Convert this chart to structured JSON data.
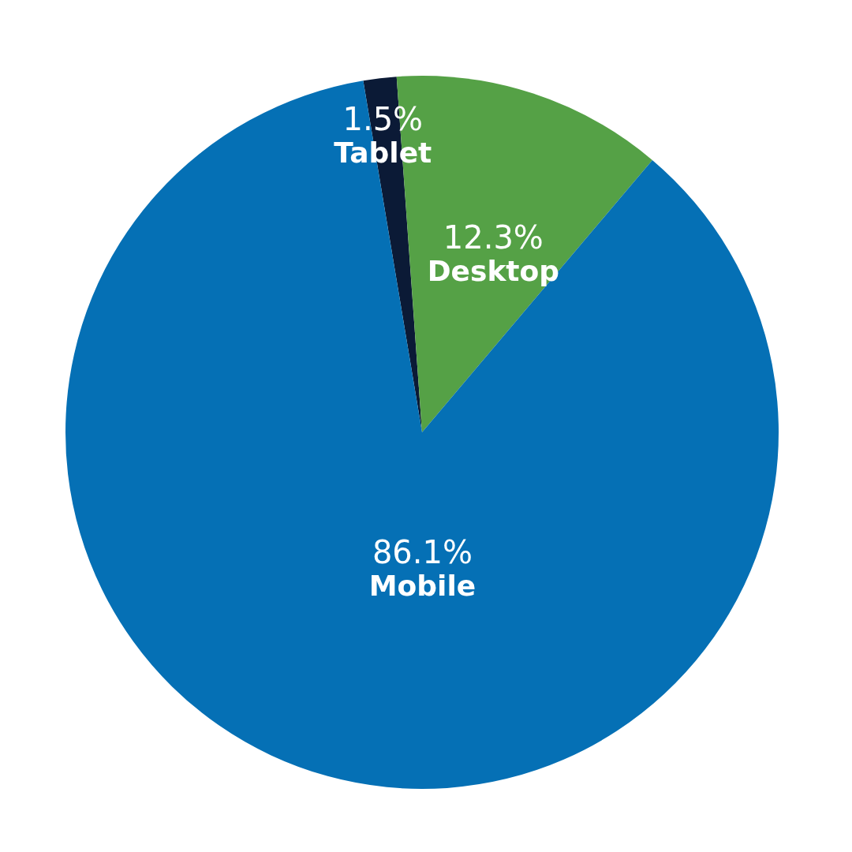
{
  "chart_data": {
    "type": "pie",
    "categories": [
      "Tablet",
      "Desktop",
      "Mobile"
    ],
    "values": [
      1.5,
      12.3,
      86.1
    ],
    "colors": [
      "#0b1a36",
      "#55a146",
      "#0570b5"
    ],
    "value_labels": [
      "1.5%",
      "12.3%",
      "86.1%"
    ],
    "legend": false
  }
}
